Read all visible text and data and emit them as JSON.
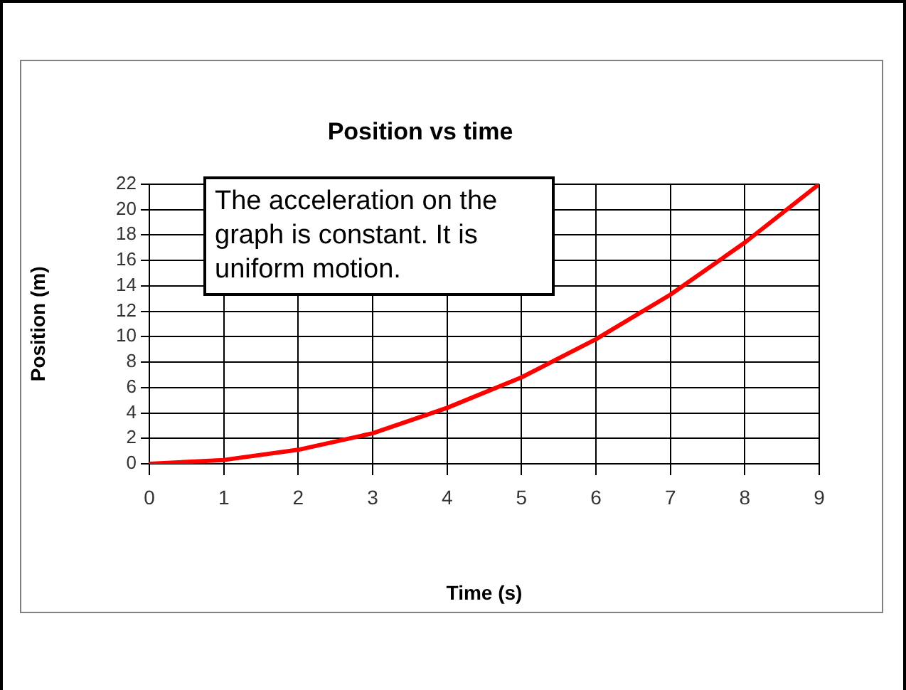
{
  "chart_data": {
    "type": "line",
    "title": "Position vs time",
    "xlabel": "Time (s)",
    "ylabel": "Position (m)",
    "annotations": [
      "The acceleration on the graph is constant. It is uniform motion."
    ],
    "x": [
      0,
      1,
      2,
      3,
      4,
      5,
      6,
      7,
      8,
      9
    ],
    "series": [
      {
        "color": "#ff0000",
        "values": [
          0,
          0.3,
          1.1,
          2.4,
          4.4,
          6.8,
          9.8,
          13.3,
          17.4,
          22
        ]
      }
    ],
    "xlim": [
      0,
      9
    ],
    "xticks": [
      0,
      1,
      2,
      3,
      4,
      5,
      6,
      7,
      8,
      9
    ],
    "ylim": [
      0,
      22
    ],
    "yticks": [
      0,
      2,
      4,
      6,
      8,
      10,
      12,
      14,
      16,
      18,
      20,
      22
    ],
    "grid": true,
    "legend": false,
    "marker": "none",
    "line_style": "solid"
  }
}
